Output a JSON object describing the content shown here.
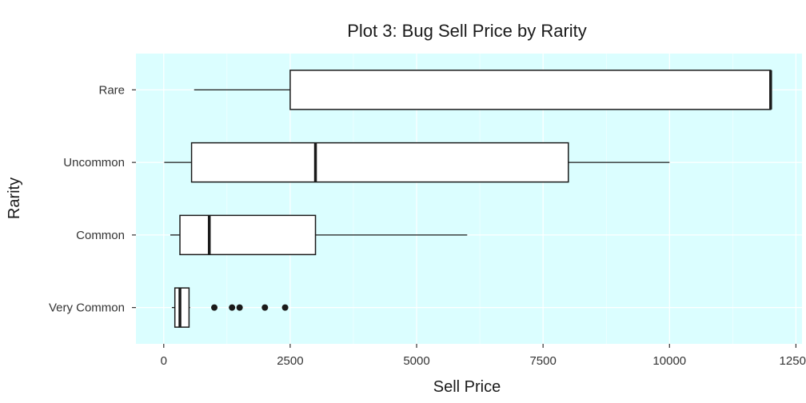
{
  "chart_data": {
    "type": "boxplot",
    "orientation": "horizontal",
    "title": "Plot 3: Bug Sell Price by Rarity",
    "xlabel": "Sell Price",
    "ylabel": "Rarity",
    "xlim": [
      -550,
      12620
    ],
    "xticks": [
      0,
      2500,
      5000,
      7500,
      10000,
      12500
    ],
    "xtick_labels": [
      "0",
      "2500",
      "5000",
      "7500",
      "10000",
      "12500"
    ],
    "categories": [
      "Very Common",
      "Common",
      "Uncommon",
      "Rare"
    ],
    "series": [
      {
        "category": "Rare",
        "min": 600,
        "q1": 2500,
        "median": 12000,
        "q3": 12000,
        "max": 12000,
        "outliers": []
      },
      {
        "category": "Uncommon",
        "min": 10,
        "q1": 550,
        "median": 3000,
        "q3": 8000,
        "max": 10000,
        "outliers": []
      },
      {
        "category": "Common",
        "min": 130,
        "q1": 320,
        "median": 900,
        "q3": 3000,
        "max": 6000,
        "outliers": []
      },
      {
        "category": "Very Common",
        "min": 160,
        "q1": 220,
        "median": 320,
        "q3": 500,
        "max": 520,
        "outliers": [
          1000,
          1350,
          1500,
          2000,
          2400
        ]
      }
    ],
    "grid": true,
    "colors": {
      "panel_background": "#dbfeff",
      "box_fill": "#ffffff",
      "box_stroke": "#1a1a1a",
      "grid": "#ffffff"
    }
  }
}
